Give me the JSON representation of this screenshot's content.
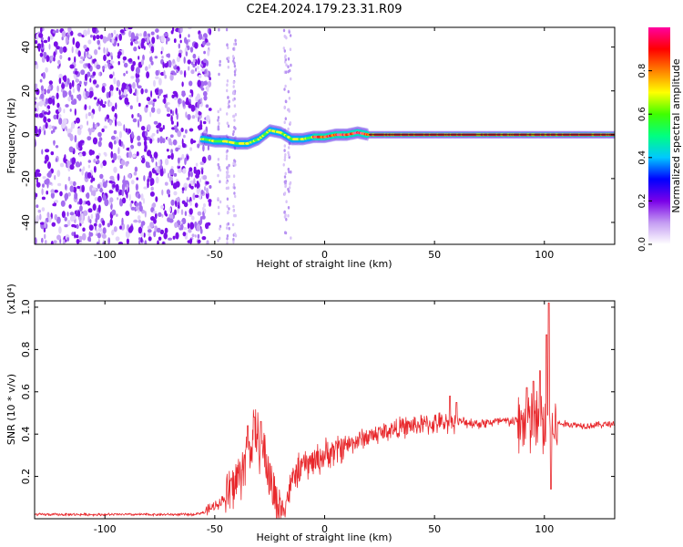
{
  "figure": {
    "title": "C2E4.2024.179.23.31.R09"
  },
  "chart_data": [
    {
      "type": "heatmap",
      "xlabel": "Height of straight line (km)",
      "ylabel": "Frequency (Hz)",
      "xlim": [
        -132,
        132
      ],
      "ylim": [
        -50,
        49
      ],
      "xticks": [
        -100,
        -50,
        0,
        50,
        100
      ],
      "yticks": [
        -40,
        -20,
        0,
        20,
        40
      ],
      "colorbar": {
        "label": "Normalized spectral amplitude",
        "range": [
          0,
          1
        ],
        "ticks": [
          0.0,
          0.2,
          0.4,
          0.6,
          0.8
        ],
        "colors": [
          "#ffffff",
          "#c49cf2",
          "#7a00e8",
          "#0000ff",
          "#00c8ff",
          "#00ff80",
          "#40ff00",
          "#ffff00",
          "#ff8000",
          "#ff0000",
          "#ff00a0"
        ]
      },
      "signal_center_frequency": [
        [
          -55,
          -2
        ],
        [
          -50,
          -3
        ],
        [
          -45,
          -3
        ],
        [
          -40,
          -4
        ],
        [
          -35,
          -4
        ],
        [
          -30,
          -2
        ],
        [
          -25,
          2
        ],
        [
          -20,
          1
        ],
        [
          -15,
          -2
        ],
        [
          -10,
          -2
        ],
        [
          -5,
          -1
        ],
        [
          0,
          -1
        ],
        [
          5,
          0
        ],
        [
          10,
          0
        ],
        [
          15,
          1
        ],
        [
          20,
          0
        ],
        [
          50,
          0
        ],
        [
          100,
          0
        ],
        [
          132,
          0
        ]
      ],
      "noise_extent_x": [
        -132,
        -52
      ]
    },
    {
      "type": "line",
      "xlabel": "Height of straight line (km)",
      "ylabel": "SNR (10 * v/v)",
      "y_multiplier": "(x10⁴)",
      "xlim": [
        -132,
        132
      ],
      "ylim": [
        0,
        1.03
      ],
      "xticks": [
        -100,
        -50,
        0,
        50,
        100
      ],
      "yticks": [
        0.2,
        0.4,
        0.6,
        0.8,
        1.0
      ],
      "line_color": "#e8282c",
      "envelope": [
        [
          -132,
          0.02
        ],
        [
          -60,
          0.02
        ],
        [
          -55,
          0.03
        ],
        [
          -50,
          0.06
        ],
        [
          -45,
          0.1
        ],
        [
          -40,
          0.18
        ],
        [
          -35,
          0.3
        ],
        [
          -32,
          0.4
        ],
        [
          -28,
          0.33
        ],
        [
          -24,
          0.15
        ],
        [
          -20,
          0.03
        ],
        [
          -17,
          0.1
        ],
        [
          -14,
          0.2
        ],
        [
          -10,
          0.25
        ],
        [
          -5,
          0.27
        ],
        [
          0,
          0.3
        ],
        [
          10,
          0.35
        ],
        [
          20,
          0.39
        ],
        [
          30,
          0.42
        ],
        [
          40,
          0.44
        ],
        [
          50,
          0.45
        ],
        [
          60,
          0.46
        ],
        [
          70,
          0.45
        ],
        [
          80,
          0.46
        ],
        [
          90,
          0.46
        ],
        [
          95,
          0.44
        ],
        [
          100,
          0.45
        ],
        [
          105,
          0.45
        ],
        [
          120,
          0.44
        ],
        [
          132,
          0.45
        ]
      ],
      "spikes": [
        [
          -32,
          0.48
        ],
        [
          -29,
          0.46
        ],
        [
          -35,
          0.44
        ],
        [
          92,
          0.62
        ],
        [
          95,
          0.65
        ],
        [
          98,
          0.7
        ],
        [
          101,
          0.87
        ],
        [
          102,
          1.02
        ],
        [
          103,
          0.14
        ],
        [
          104,
          0.4
        ],
        [
          57,
          0.58
        ],
        [
          60,
          0.55
        ]
      ]
    }
  ]
}
